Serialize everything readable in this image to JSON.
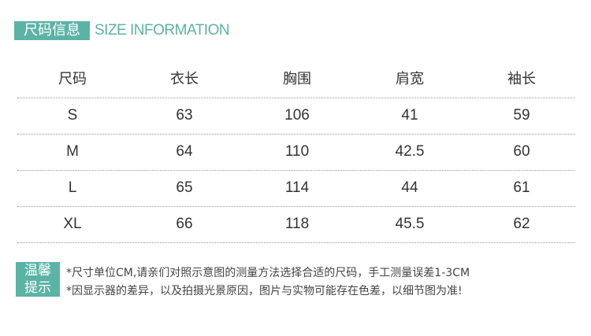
{
  "title": {
    "zh": "尺码信息",
    "en": "SIZE INFORMATION"
  },
  "table": {
    "headers": [
      "尺码",
      "衣长",
      "胸围",
      "肩宽",
      "袖长"
    ],
    "rows": [
      [
        "S",
        "63",
        "106",
        "41",
        "59"
      ],
      [
        "M",
        "64",
        "110",
        "42.5",
        "60"
      ],
      [
        "L",
        "65",
        "114",
        "44",
        "61"
      ],
      [
        "XL",
        "66",
        "118",
        "45.5",
        "62"
      ]
    ]
  },
  "notes": {
    "label_line1": "温馨",
    "label_line2": "提示",
    "lines": [
      "*尺寸单位CM,请亲们对照示意图的测量方法选择合适的尺码，手工测量误差1-3CM",
      "*因显示器的差异，以及拍摄光景原因，图片与实物可能存在色差，以细节图为准!"
    ]
  },
  "colors": {
    "accent": "#5bb3a6"
  }
}
